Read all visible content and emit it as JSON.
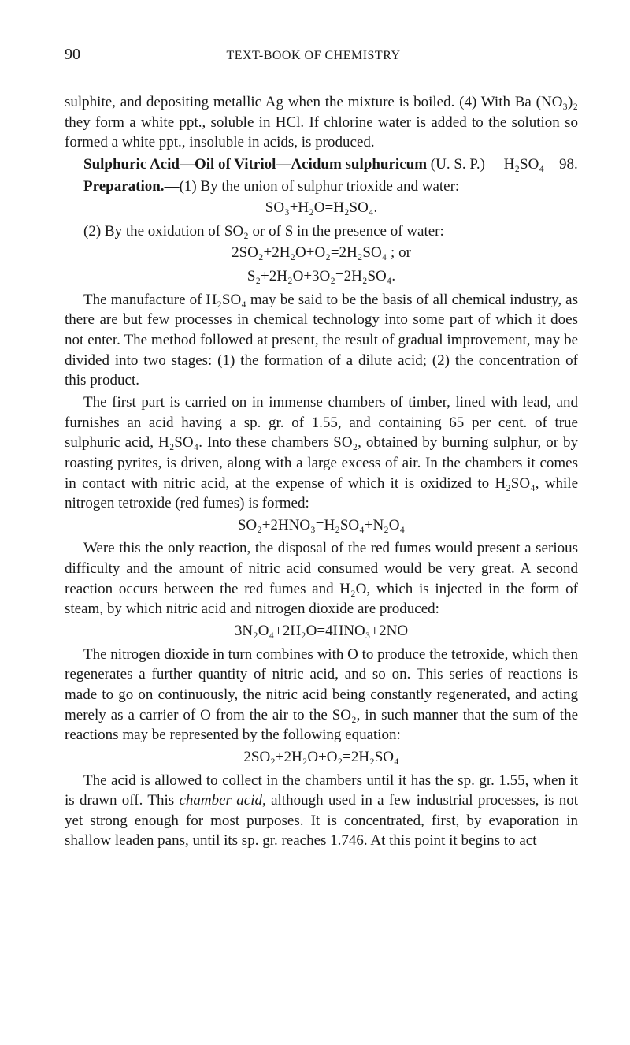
{
  "page_number": "90",
  "running_head": "TEXT-BOOK OF CHEMISTRY",
  "para1": "sulphite, and depositing metallic Ag when the mixture is boiled. (4) With Ba (NO₃)₂ they form a white ppt., soluble in HCl. If chlorine water is added to the solution so formed a white ppt., insoluble in acids, is produced.",
  "heading1_a": "Sulphuric Acid—Oil of Vitriol—Acidum sulphuricum",
  "heading1_b": " (U. S. P.) —H₂SO₄—98.",
  "prep_label": "Preparation.",
  "prep_text": "—(1) By the union of sulphur trioxide and water:",
  "eq1": "SO₃+H₂O=H₂SO₄.",
  "para3": "(2) By the oxidation of SO₂ or of S in the presence of water:",
  "eq2a": "2SO₂+2H₂O+O₂=2H₂SO₄ ; or",
  "eq2b": "S₂+2H₂O+3O₂=2H₂SO₄.",
  "para4": "The manufacture of H₂SO₄ may be said to be the basis of all chemical industry, as there are but few processes in chemical tech­nology into some part of which it does not enter. The method fol­lowed at present, the result of gradual improvement, may be divided into two stages: (1) the formation of a dilute acid; (2) the con­centration of this product.",
  "para5": "The first part is carried on in immense chambers of timber, lined with lead, and furnishes an acid having a sp. gr. of 1.55, and con­taining 65 per cent. of true sulphuric acid, H₂SO₄. Into these cham­bers SO₂, obtained by burning sulphur, or by roasting pyrites, is driven, along with a large excess of air. In the chambers it comes in contact with nitric acid, at the expense of which it is oxidized to H₂SO₄, while nitrogen tetroxide (red fumes) is formed:",
  "eq3": "SO₂+2HNO₃=H₂SO₄+N₂O₄",
  "para6": "Were this the only reaction, the disposal of the red fumes would present a serious difficulty and the amount of nitric acid consumed would be very great. A second reaction occurs between the red fumes and H₂O, which is injected in the form of steam, by which nitric acid and nitrogen dioxide are produced:",
  "eq4": "3N₂O₄+2H₂O=4HNO₃+2NO",
  "para7": "The nitrogen dioxide in turn combines with O to produce the tetroxide, which then regenerates a further quantity of nitric acid, and so on. This series of reactions is made to go on continuously, the nitric acid being constantly regenerated, and acting merely as a carrier of O from the air to the SO₂, in such manner that the sum of the reactions may be represented by the following equation:",
  "eq5": "2SO₂+2H₂O+O₂=2H₂SO₄",
  "para8a": "The acid is allowed to collect in the chambers until it has the sp. gr. 1.55, when it is drawn off. This ",
  "para8b": "chamber acid",
  "para8c": ", although used in a few industrial processes, is not yet strong enough for most pur­poses. It is concentrated, first, by evaporation in shallow leaden pans, until its sp. gr. reaches 1.746. At this point it begins to act"
}
